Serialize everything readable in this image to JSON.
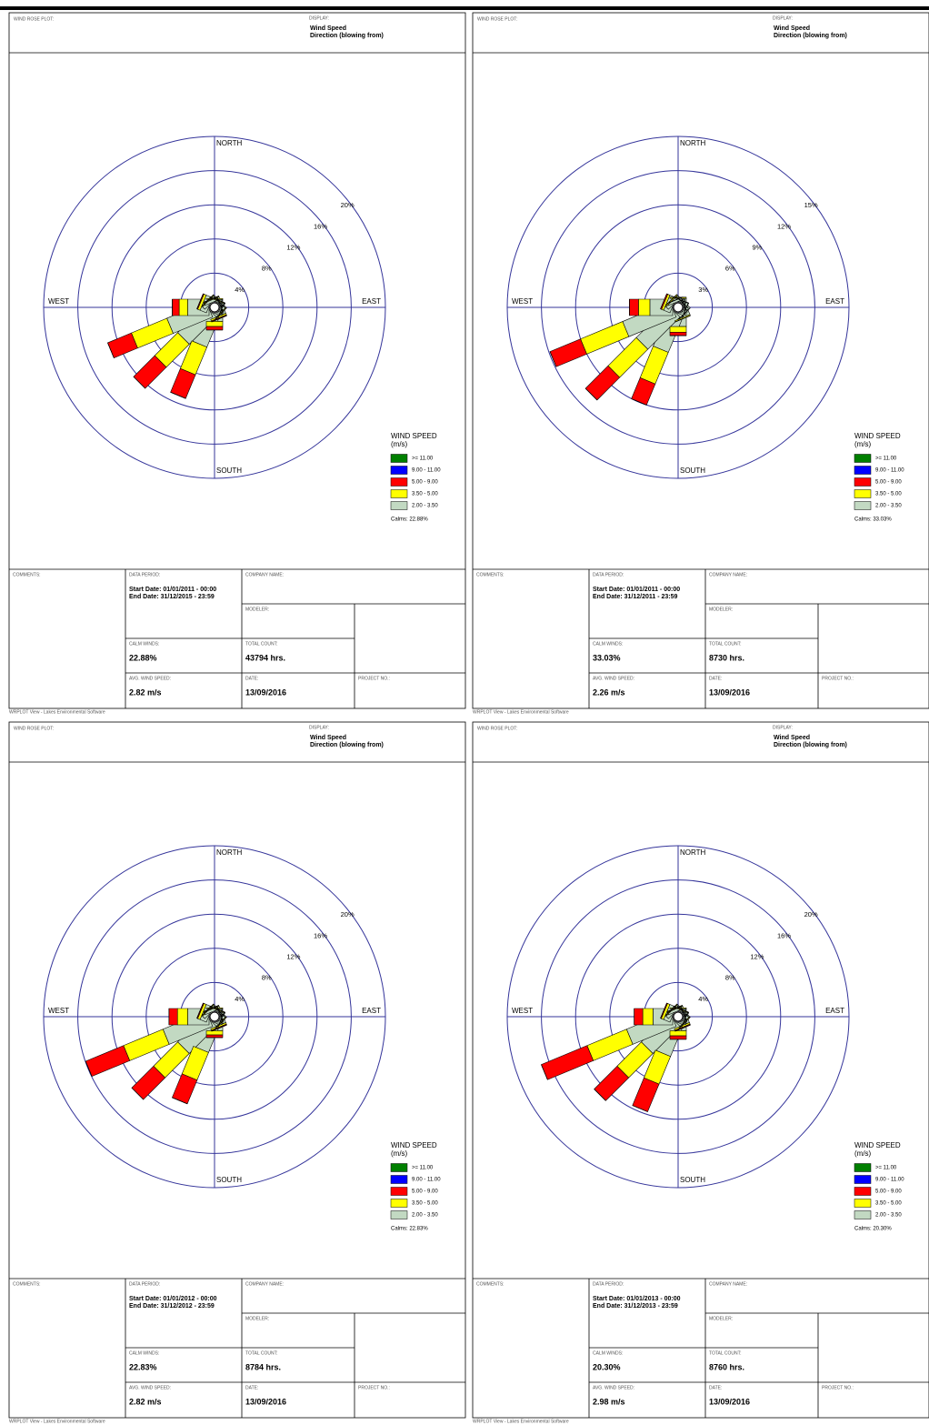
{
  "chart_data": [
    {
      "type": "windrose",
      "title": "WIND ROSE PLOT:",
      "display_label": "DISPLAY:",
      "display": [
        "Wind Speed",
        "Direction (blowing from)"
      ],
      "categories": [
        "NORTH",
        null,
        null,
        null,
        "EAST",
        null,
        null,
        null,
        "SOUTH",
        null,
        null,
        null,
        "WEST",
        null,
        null,
        null
      ],
      "rlim": [
        0,
        20
      ],
      "rticks": [
        {
          "value": 4,
          "label": "4%"
        },
        {
          "value": 8,
          "label": "8%"
        },
        {
          "value": 12,
          "label": "12%"
        },
        {
          "value": 16,
          "label": "16%"
        },
        {
          "value": 20,
          "label": "20%"
        }
      ],
      "legend_title": "WIND SPEED",
      "legend_unit": "(m/s)",
      "series": [
        {
          "name": "2.00 - 3.50",
          "color": "#c2d9c2",
          "values": [
            0.3,
            0.2,
            0.2,
            0.1,
            0.2,
            0.2,
            0.3,
            0.5,
            1.0,
            4.0,
            4.5,
            5.0,
            2.5,
            0.8,
            0.4,
            0.3
          ]
        },
        {
          "name": "3.50 - 5.00",
          "color": "#ffff00",
          "values": [
            0.1,
            0.1,
            0,
            0,
            0,
            0,
            0.1,
            0.2,
            0.6,
            3.5,
            3.8,
            4.5,
            1.0,
            0.3,
            0.1,
            0.1
          ]
        },
        {
          "name": "5.00 - 9.00",
          "color": "#ff0000",
          "values": [
            0,
            0,
            0,
            0,
            0,
            0,
            0,
            0.1,
            0.4,
            3.0,
            3.5,
            3.0,
            0.8,
            0.1,
            0,
            0
          ]
        },
        {
          "name": "9.00 - 11.00",
          "color": "#0000ff",
          "values": [
            0,
            0,
            0,
            0,
            0,
            0,
            0,
            0,
            0,
            0,
            0,
            0,
            0,
            0,
            0,
            0
          ]
        },
        {
          "name": ">= 11.00",
          "color": "#008000",
          "values": [
            0,
            0,
            0,
            0,
            0,
            0,
            0,
            0,
            0,
            0,
            0,
            0,
            0,
            0,
            0,
            0
          ]
        }
      ],
      "calms": "Calms: 22.88%",
      "form": {
        "comments_label": "COMMENTS:",
        "data_period_label": "DATA PERIOD:",
        "start": "Start Date: 01/01/2011 - 00:00",
        "end": "End Date: 31/12/2015 - 23:59",
        "company_label": "COMPANY NAME:",
        "modeler_label": "MODELER:",
        "calm_label": "CALM WINDS:",
        "calm": "22.88%",
        "count_label": "TOTAL COUNT:",
        "count": "43794 hrs.",
        "avg_label": "AVG. WIND SPEED:",
        "avg": "2.82 m/s",
        "date_label": "DATE:",
        "date": "13/09/2016",
        "project_label": "PROJECT NO.:"
      },
      "footer": "WRPLOT View - Lakes Environmental Software"
    },
    {
      "type": "windrose",
      "title": "WIND ROSE PLOT:",
      "display_label": "DISPLAY:",
      "display": [
        "Wind Speed",
        "Direction (blowing from)"
      ],
      "categories": [
        "NORTH",
        null,
        null,
        null,
        "EAST",
        null,
        null,
        null,
        "SOUTH",
        null,
        null,
        null,
        "WEST",
        null,
        null,
        null
      ],
      "rlim": [
        0,
        15
      ],
      "rticks": [
        {
          "value": 3,
          "label": "3%"
        },
        {
          "value": 6,
          "label": "6%"
        },
        {
          "value": 9,
          "label": "9%"
        },
        {
          "value": 12,
          "label": "12%"
        },
        {
          "value": 15,
          "label": "15%"
        }
      ],
      "legend_title": "WIND SPEED",
      "legend_unit": "(m/s)",
      "series": [
        {
          "name": "2.00 - 3.50",
          "color": "#c2d9c2",
          "values": [
            0.3,
            0.2,
            0.1,
            0.1,
            0.1,
            0.2,
            0.3,
            0.5,
            1.2,
            3.5,
            4.0,
            4.5,
            2.0,
            0.6,
            0.3,
            0.2
          ]
        },
        {
          "name": "3.50 - 5.00",
          "color": "#ffff00",
          "values": [
            0.1,
            0,
            0,
            0,
            0,
            0,
            0,
            0.1,
            0.5,
            3.0,
            3.5,
            4.0,
            1.0,
            0.2,
            0.1,
            0
          ]
        },
        {
          "name": "5.00 - 9.00",
          "color": "#ff0000",
          "values": [
            0,
            0,
            0,
            0,
            0,
            0,
            0,
            0,
            0.3,
            2.0,
            2.8,
            2.9,
            0.8,
            0.1,
            0,
            0
          ]
        },
        {
          "name": "9.00 - 11.00",
          "color": "#0000ff",
          "values": [
            0,
            0,
            0,
            0,
            0,
            0,
            0,
            0,
            0,
            0,
            0,
            0,
            0,
            0,
            0,
            0
          ]
        },
        {
          "name": ">= 11.00",
          "color": "#008000",
          "values": [
            0,
            0,
            0,
            0,
            0,
            0,
            0,
            0,
            0,
            0,
            0,
            0,
            0,
            0,
            0,
            0
          ]
        }
      ],
      "calms": "Calms: 33.03%",
      "form": {
        "comments_label": "COMMENTS:",
        "data_period_label": "DATA PERIOD:",
        "start": "Start Date: 01/01/2011 - 00:00",
        "end": "End Date: 31/12/2011 - 23:59",
        "company_label": "COMPANY NAME:",
        "modeler_label": "MODELER:",
        "calm_label": "CALM WINDS:",
        "calm": "33.03%",
        "count_label": "TOTAL COUNT:",
        "count": "8730 hrs.",
        "avg_label": "AVG. WIND SPEED:",
        "avg": "2.26 m/s",
        "date_label": "DATE:",
        "date": "13/09/2016",
        "project_label": "PROJECT NO.:"
      },
      "footer": "WRPLOT View - Lakes Environmental Software"
    },
    {
      "type": "windrose",
      "title": "WIND ROSE PLOT:",
      "display_label": "DISPLAY:",
      "display": [
        "Wind Speed",
        "Direction (blowing from)"
      ],
      "categories": [
        "NORTH",
        null,
        null,
        null,
        "EAST",
        null,
        null,
        null,
        "SOUTH",
        null,
        null,
        null,
        "WEST",
        null,
        null,
        null
      ],
      "rlim": [
        0,
        20
      ],
      "rticks": [
        {
          "value": 4,
          "label": "4%"
        },
        {
          "value": 8,
          "label": "8%"
        },
        {
          "value": 12,
          "label": "12%"
        },
        {
          "value": 16,
          "label": "16%"
        },
        {
          "value": 20,
          "label": "20%"
        }
      ],
      "legend_title": "WIND SPEED",
      "legend_unit": "(m/s)",
      "series": [
        {
          "name": "2.00 - 3.50",
          "color": "#c2d9c2",
          "values": [
            0.3,
            0.2,
            0.2,
            0.1,
            0.2,
            0.2,
            0.3,
            0.5,
            1.0,
            3.5,
            4.5,
            5.5,
            2.5,
            0.8,
            0.4,
            0.3
          ]
        },
        {
          "name": "3.50 - 5.00",
          "color": "#ffff00",
          "values": [
            0.1,
            0.1,
            0,
            0,
            0,
            0,
            0.1,
            0.2,
            0.5,
            3.5,
            4.0,
            5.0,
            1.2,
            0.3,
            0.1,
            0.1
          ]
        },
        {
          "name": "5.00 - 9.00",
          "color": "#ff0000",
          "values": [
            0,
            0,
            0,
            0,
            0,
            0,
            0,
            0.1,
            0.3,
            3.0,
            3.6,
            4.8,
            1.0,
            0.1,
            0,
            0
          ]
        },
        {
          "name": "9.00 - 11.00",
          "color": "#0000ff",
          "values": [
            0,
            0,
            0,
            0,
            0,
            0,
            0,
            0,
            0,
            0,
            0,
            0,
            0,
            0,
            0,
            0
          ]
        },
        {
          "name": ">= 11.00",
          "color": "#008000",
          "values": [
            0,
            0,
            0,
            0,
            0,
            0,
            0,
            0,
            0,
            0,
            0,
            0,
            0,
            0,
            0,
            0
          ]
        }
      ],
      "calms": "Calms: 22.83%",
      "form": {
        "comments_label": "COMMENTS:",
        "data_period_label": "DATA PERIOD:",
        "start": "Start Date: 01/01/2012 - 00:00",
        "end": "End Date: 31/12/2012 - 23:59",
        "company_label": "COMPANY NAME:",
        "modeler_label": "MODELER:",
        "calm_label": "CALM WINDS:",
        "calm": "22.83%",
        "count_label": "TOTAL COUNT:",
        "count": "8784 hrs.",
        "avg_label": "AVG. WIND SPEED:",
        "avg": "2.82 m/s",
        "date_label": "DATE:",
        "date": "13/09/2016",
        "project_label": "PROJECT NO.:"
      },
      "footer": "WRPLOT View - Lakes Environmental Software"
    },
    {
      "type": "windrose",
      "title": "WIND ROSE PLOT:",
      "display_label": "DISPLAY:",
      "display": [
        "Wind Speed",
        "Direction (blowing from)"
      ],
      "categories": [
        "NORTH",
        null,
        null,
        null,
        "EAST",
        null,
        null,
        null,
        "SOUTH",
        null,
        null,
        null,
        "WEST",
        null,
        null,
        null
      ],
      "rlim": [
        0,
        20
      ],
      "rticks": [
        {
          "value": 4,
          "label": "4%"
        },
        {
          "value": 8,
          "label": "8%"
        },
        {
          "value": 12,
          "label": "12%"
        },
        {
          "value": 16,
          "label": "16%"
        },
        {
          "value": 20,
          "label": "20%"
        }
      ],
      "legend_title": "WIND SPEED",
      "legend_unit": "(m/s)",
      "series": [
        {
          "name": "2.00 - 3.50",
          "color": "#c2d9c2",
          "values": [
            0.3,
            0.2,
            0.2,
            0.1,
            0.2,
            0.2,
            0.3,
            0.5,
            1.0,
            4.0,
            4.5,
            5.5,
            2.3,
            0.8,
            0.4,
            0.3
          ]
        },
        {
          "name": "3.50 - 5.00",
          "color": "#ffff00",
          "values": [
            0.1,
            0.1,
            0,
            0,
            0,
            0,
            0.1,
            0.2,
            0.6,
            3.5,
            4.0,
            5.0,
            1.2,
            0.3,
            0.1,
            0.1
          ]
        },
        {
          "name": "5.00 - 9.00",
          "color": "#ff0000",
          "values": [
            0,
            0,
            0,
            0,
            0,
            0,
            0,
            0.1,
            0.4,
            3.5,
            3.8,
            5.8,
            1.0,
            0.1,
            0,
            0
          ]
        },
        {
          "name": "9.00 - 11.00",
          "color": "#0000ff",
          "values": [
            0,
            0,
            0,
            0,
            0,
            0,
            0,
            0,
            0,
            0,
            0,
            0,
            0,
            0,
            0,
            0
          ]
        },
        {
          "name": ">= 11.00",
          "color": "#008000",
          "values": [
            0,
            0,
            0,
            0,
            0,
            0,
            0,
            0,
            0,
            0,
            0,
            0,
            0,
            0,
            0,
            0
          ]
        }
      ],
      "calms": "Calms: 20.30%",
      "form": {
        "comments_label": "COMMENTS:",
        "data_period_label": "DATA PERIOD:",
        "start": "Start Date: 01/01/2013 - 00:00",
        "end": "End Date: 31/12/2013 - 23:59",
        "company_label": "COMPANY NAME:",
        "modeler_label": "MODELER:",
        "calm_label": "CALM WINDS:",
        "calm": "20.30%",
        "count_label": "TOTAL COUNT:",
        "count": "8760 hrs.",
        "avg_label": "AVG. WIND SPEED:",
        "avg": "2.98 m/s",
        "date_label": "DATE:",
        "date": "13/09/2016",
        "project_label": "PROJECT NO.:"
      },
      "footer": "WRPLOT View - Lakes Environmental Software"
    }
  ]
}
